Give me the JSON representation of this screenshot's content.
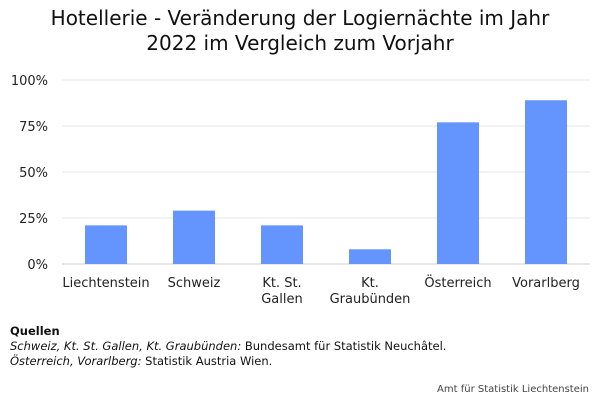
{
  "chart_data": {
    "type": "bar",
    "title": [
      "Hotellerie - Veränderung der Logiernächte im Jahr",
      "2022 im Vergleich zum Vorjahr"
    ],
    "categories": [
      [
        "Liechtenstein"
      ],
      [
        "Schweiz"
      ],
      [
        "Kt. St.",
        "Gallen"
      ],
      [
        "Kt.",
        "Graubünden"
      ],
      [
        "Österreich"
      ],
      [
        "Vorarlberg"
      ]
    ],
    "values": [
      0.21,
      0.29,
      0.21,
      0.08,
      0.77,
      0.89
    ],
    "ylim": [
      0,
      1
    ],
    "yticks": [
      0,
      0.25,
      0.5,
      0.75,
      1
    ],
    "ytick_labels": [
      "0%",
      "25%",
      "50%",
      "75%",
      "100%"
    ],
    "xlabel": "",
    "ylabel": "",
    "bar_color": "#6495ff",
    "grid": true
  },
  "sources": {
    "heading": "Quellen",
    "line1_italic": "Schweiz, Kt. St. Gallen, Kt. Graubünden:",
    "line1_text": " Bundesamt für Statistik Neuchâtel.",
    "line2_italic": "Österreich, Vorarlberg:",
    "line2_text": " Statistik Austria Wien."
  },
  "credit": "Amt für Statistik Liechtenstein"
}
